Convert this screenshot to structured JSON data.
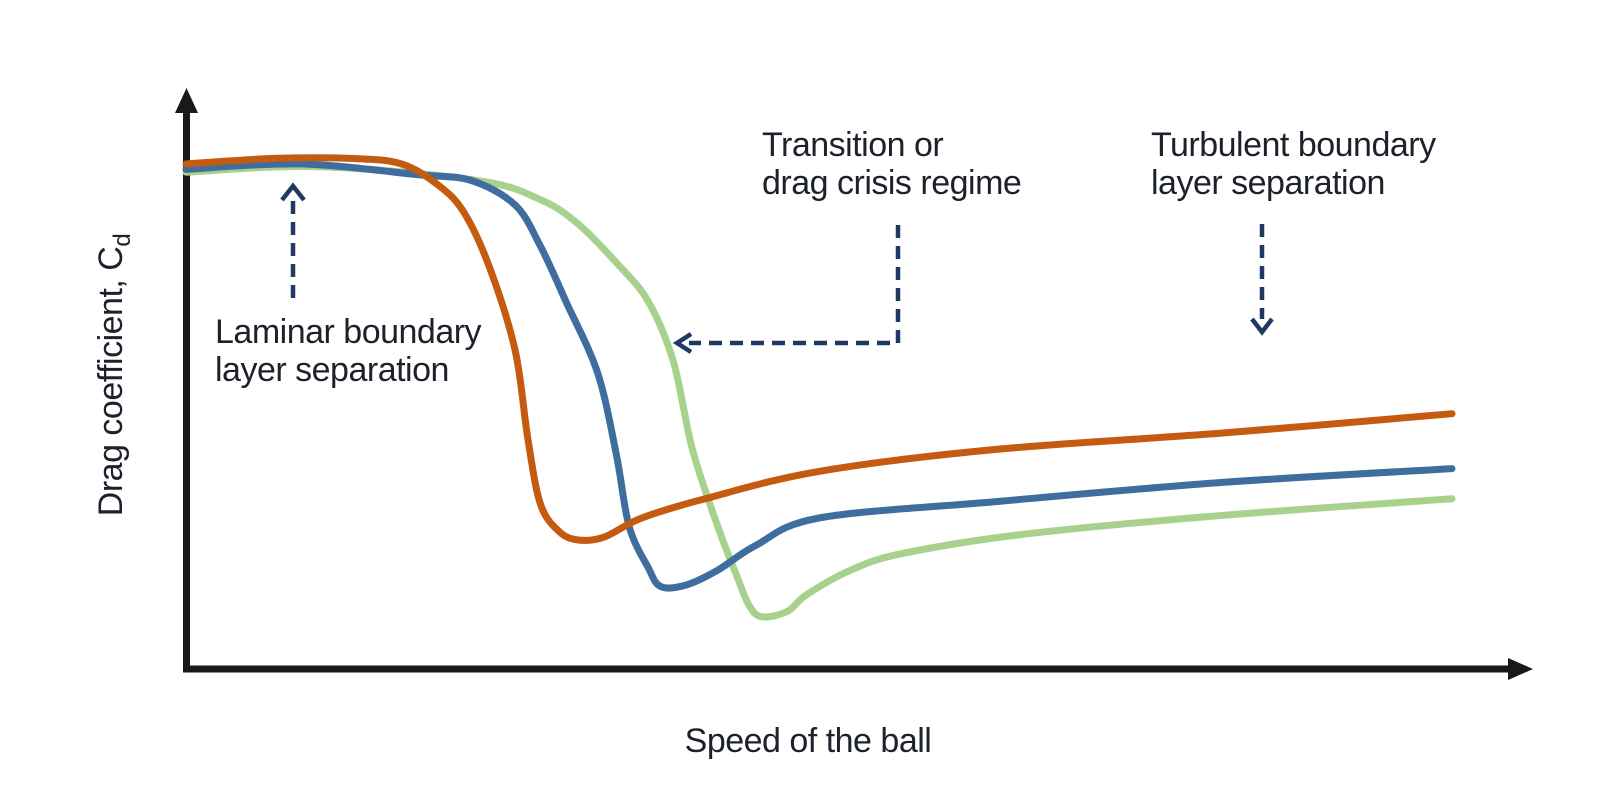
{
  "chart_data": {
    "type": "line",
    "title": "",
    "xlabel": "Speed of the ball",
    "ylabel": {
      "text": "Drag coefficient, C",
      "sub": "d"
    },
    "x_axis_ticks": [],
    "y_axis_ticks": [],
    "grid": false,
    "legend": "none",
    "axis_units": "unlabeled qualitative axes (speed increases rightward, drag coefficient increases upward)",
    "xlim_norm": [
      0,
      100
    ],
    "ylim_norm": [
      0,
      100
    ],
    "colors": {
      "axis": "#191919",
      "annotation_arrow": "#1f3864",
      "annotation_text": "#1d212b"
    },
    "series": [
      {
        "name": "orange-curve",
        "color": "#c55a11",
        "points": [
          [
            0,
            92
          ],
          [
            7,
            93
          ],
          [
            13,
            93
          ],
          [
            17,
            92
          ],
          [
            20,
            88
          ],
          [
            22,
            83
          ],
          [
            24,
            73
          ],
          [
            26,
            58
          ],
          [
            27,
            42
          ],
          [
            28,
            30
          ],
          [
            29.5,
            25
          ],
          [
            31,
            23.5
          ],
          [
            33,
            24
          ],
          [
            36,
            27.5
          ],
          [
            41,
            31
          ],
          [
            50,
            36
          ],
          [
            64,
            40
          ],
          [
            82,
            43
          ],
          [
            100,
            46.5
          ]
        ]
      },
      {
        "name": "blue-curve",
        "color": "#3f6e9e",
        "points": [
          [
            0,
            91
          ],
          [
            9,
            92
          ],
          [
            18.5,
            90
          ],
          [
            22.5,
            89
          ],
          [
            26,
            84.5
          ],
          [
            28,
            77
          ],
          [
            30,
            67
          ],
          [
            32.5,
            54
          ],
          [
            34,
            39
          ],
          [
            35,
            26
          ],
          [
            36.5,
            18.5
          ],
          [
            37.5,
            15
          ],
          [
            39.5,
            15.3
          ],
          [
            42,
            18
          ],
          [
            45,
            22.5
          ],
          [
            50,
            27.5
          ],
          [
            64,
            30.5
          ],
          [
            82,
            34
          ],
          [
            100,
            36.5
          ]
        ]
      },
      {
        "name": "green-curve",
        "color": "#a9d18e",
        "points": [
          [
            0,
            90.5
          ],
          [
            10.5,
            91.5
          ],
          [
            23,
            89
          ],
          [
            28,
            85.5
          ],
          [
            31,
            81
          ],
          [
            34,
            74
          ],
          [
            36.5,
            67
          ],
          [
            38.5,
            56
          ],
          [
            40,
            40
          ],
          [
            42,
            26
          ],
          [
            43.5,
            17
          ],
          [
            44.5,
            11.5
          ],
          [
            45.5,
            9.5
          ],
          [
            47.5,
            10.5
          ],
          [
            49,
            13.5
          ],
          [
            52.5,
            18
          ],
          [
            56.5,
            21
          ],
          [
            66,
            24.5
          ],
          [
            82,
            28
          ],
          [
            100,
            31
          ]
        ]
      }
    ],
    "annotations": {
      "laminar": {
        "line1": "Laminar boundary",
        "line2": "layer separation"
      },
      "transition": {
        "line1": "Transition or",
        "line2": "drag crisis regime"
      },
      "turbulent": {
        "line1": "Turbulent boundary",
        "line2": "layer separation"
      }
    }
  }
}
